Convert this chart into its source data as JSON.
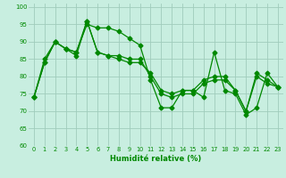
{
  "title": "",
  "xlabel": "Humidité relative (%)",
  "ylabel": "",
  "bg_color": "#c8eee0",
  "grid_color": "#a0ccbc",
  "line_color": "#008800",
  "marker": "D",
  "markersize": 2.5,
  "linewidth": 0.9,
  "xlim": [
    -0.5,
    23.5
  ],
  "ylim": [
    60,
    101
  ],
  "yticks": [
    60,
    65,
    70,
    75,
    80,
    85,
    90,
    95,
    100
  ],
  "xticks": [
    0,
    1,
    2,
    3,
    4,
    5,
    6,
    7,
    8,
    9,
    10,
    11,
    12,
    13,
    14,
    15,
    16,
    17,
    18,
    19,
    20,
    21,
    22,
    23
  ],
  "series": [
    [
      74,
      84,
      90,
      88,
      87,
      95,
      94,
      94,
      93,
      91,
      89,
      79,
      71,
      71,
      76,
      76,
      74,
      87,
      76,
      75,
      69,
      71,
      81,
      77
    ],
    [
      74,
      84,
      90,
      88,
      87,
      96,
      87,
      86,
      86,
      85,
      85,
      80,
      75,
      74,
      75,
      75,
      78,
      79,
      79,
      76,
      70,
      81,
      79,
      77
    ],
    [
      74,
      85,
      90,
      88,
      86,
      96,
      87,
      86,
      85,
      84,
      84,
      81,
      76,
      75,
      76,
      76,
      79,
      80,
      80,
      76,
      70,
      80,
      78,
      77
    ]
  ]
}
